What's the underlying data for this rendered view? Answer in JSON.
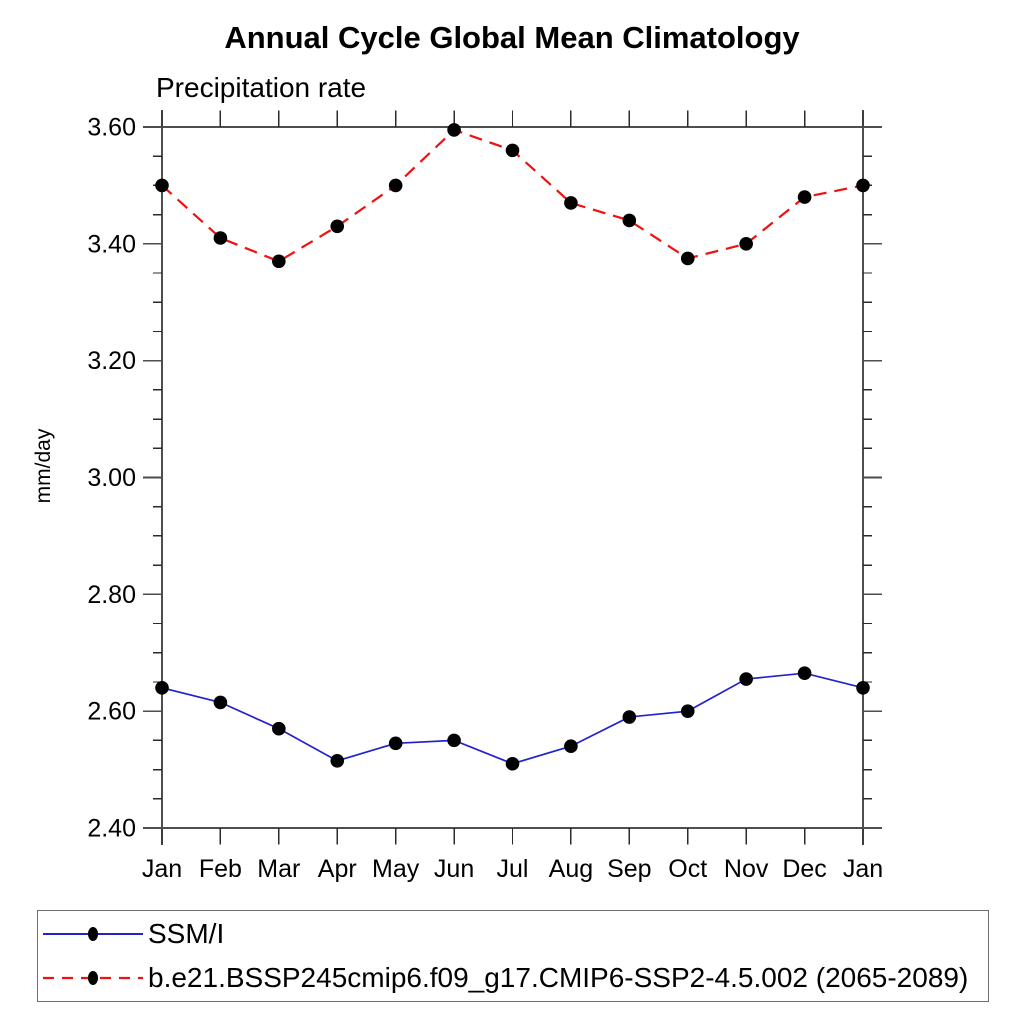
{
  "chart_data": {
    "type": "line",
    "title": "Annual Cycle Global Mean Climatology",
    "subtitle": "Precipitation rate",
    "xlabel": "",
    "ylabel": "mm/day",
    "categories": [
      "Jan",
      "Feb",
      "Mar",
      "Apr",
      "May",
      "Jun",
      "Jul",
      "Aug",
      "Sep",
      "Oct",
      "Nov",
      "Dec",
      "Jan"
    ],
    "ylim": [
      2.4,
      3.6
    ],
    "y_major_step": 0.2,
    "y_minor_step": 0.05,
    "y_tick_labels": [
      "2.40",
      "2.60",
      "2.80",
      "3.00",
      "3.20",
      "3.40",
      "3.60"
    ],
    "grid": false,
    "legend_position": "bottom-left-box",
    "marker": "filled-circle",
    "marker_color": "#000000",
    "axis_color": "#4e4e4e",
    "tick_color": "#2b2b2b",
    "series": [
      {
        "name": "SSM/I",
        "color": "#2222cc",
        "line_style": "solid",
        "values": [
          2.64,
          2.615,
          2.57,
          2.515,
          2.545,
          2.55,
          2.51,
          2.54,
          2.59,
          2.6,
          2.655,
          2.665,
          2.64
        ]
      },
      {
        "name": "b.e21.BSSP245cmip6.f09_g17.CMIP6-SSP2-4.5.002 (2065-2089)",
        "color": "#f01010",
        "line_style": "dashed",
        "values": [
          3.5,
          3.41,
          3.37,
          3.43,
          3.5,
          3.595,
          3.56,
          3.47,
          3.44,
          3.375,
          3.4,
          3.48,
          3.5
        ]
      }
    ]
  }
}
